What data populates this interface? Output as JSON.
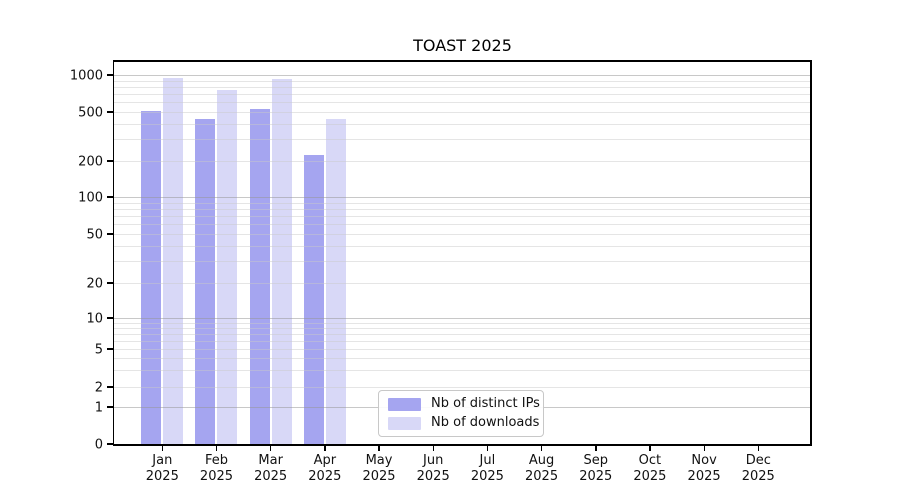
{
  "chart_data": {
    "type": "bar",
    "title": "TOAST 2025",
    "categories": [
      "Jan 2025",
      "Feb 2025",
      "Mar 2025",
      "Apr 2025",
      "May 2025",
      "Jun 2025",
      "Jul 2025",
      "Aug 2025",
      "Sep 2025",
      "Oct 2025",
      "Nov 2025",
      "Dec 2025"
    ],
    "x_tick_labels": [
      {
        "line1": "Jan",
        "line2": "2025"
      },
      {
        "line1": "Feb",
        "line2": "2025"
      },
      {
        "line1": "Mar",
        "line2": "2025"
      },
      {
        "line1": "Apr",
        "line2": "2025"
      },
      {
        "line1": "May",
        "line2": "2025"
      },
      {
        "line1": "Jun",
        "line2": "2025"
      },
      {
        "line1": "Jul",
        "line2": "2025"
      },
      {
        "line1": "Aug",
        "line2": "2025"
      },
      {
        "line1": "Sep",
        "line2": "2025"
      },
      {
        "line1": "Oct",
        "line2": "2025"
      },
      {
        "line1": "Nov",
        "line2": "2025"
      },
      {
        "line1": "Dec",
        "line2": "2025"
      }
    ],
    "series": [
      {
        "name": "Nb of distinct IPs",
        "key": "distinct-ips",
        "color": "#a5a5f0",
        "values": [
          505,
          435,
          530,
          225,
          null,
          null,
          null,
          null,
          null,
          null,
          null,
          null
        ]
      },
      {
        "name": "Nb of downloads",
        "key": "downloads",
        "color": "#d8d8f7",
        "values": [
          950,
          755,
          930,
          435,
          null,
          null,
          null,
          null,
          null,
          null,
          null,
          null
        ]
      }
    ],
    "yscale": "symlog",
    "yticks": [
      1000,
      500,
      200,
      100,
      50,
      20,
      10,
      5,
      2,
      1,
      0
    ],
    "ylim": [
      0,
      1300
    ],
    "grid": "both",
    "legend_position": "lower center"
  }
}
